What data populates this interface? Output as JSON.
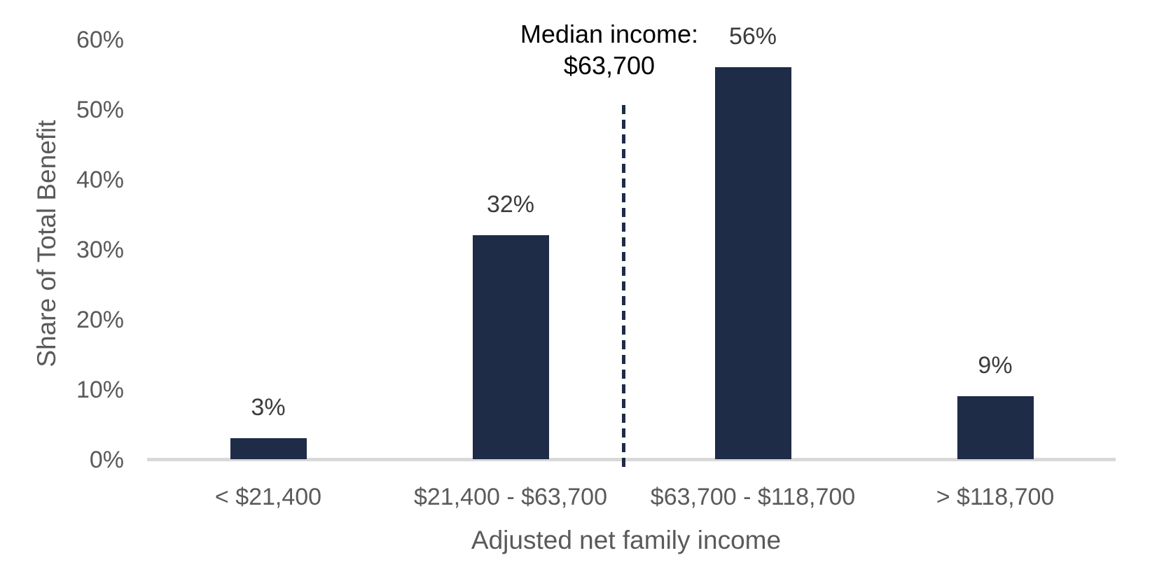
{
  "chart_data": {
    "type": "bar",
    "title": "",
    "categories": [
      "< $21,400",
      "$21,400 - $63,700",
      "$63,700 - $118,700",
      "> $118,700"
    ],
    "values": [
      3,
      32,
      56,
      9
    ],
    "data_labels": [
      "3%",
      "32%",
      "56%",
      "9%"
    ],
    "xlabel": "Adjusted net family income",
    "ylabel": "Share of Total Benefit",
    "ylim": [
      0,
      60
    ],
    "y_ticks": [
      "0%",
      "10%",
      "20%",
      "30%",
      "40%",
      "50%",
      "60%"
    ],
    "grid": "off",
    "legend": "none",
    "annotation": {
      "line1": "Median income:",
      "line2": "$63,700"
    },
    "colors": {
      "bar": "#1E2C48",
      "median_line": "#1E2C48",
      "axis_line": "#D9D9D9",
      "axis_text": "#5A5A5A",
      "data_label_text": "#3C3C3C",
      "annotation_text": "#000000"
    }
  }
}
